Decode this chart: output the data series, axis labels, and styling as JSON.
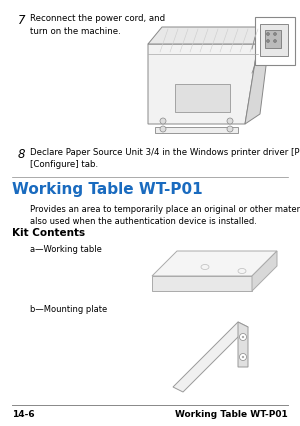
{
  "bg_color": "#ffffff",
  "footer_left": "14-6",
  "footer_right": "Working Table WT-P01",
  "footer_fontsize": 6.5,
  "step7_number": "7",
  "step7_text": "Reconnect the power cord, and\nturn on the machine.",
  "step8_number": "8",
  "step8_text": "Declare Paper Source Unit 3/4 in the Windows printer driver [Properties]/\n[Configure] tab.",
  "section_title": "Working Table WT-P01",
  "section_title_color": "#1a6bbf",
  "section_title_fontsize": 11.0,
  "body_text": "Provides an area to temporarily place an original or other materials. This is\nalso used when the authentication device is installed.",
  "kit_title": "Kit Contents",
  "kit_title_fontsize": 7.5,
  "label_a": "a—Working table",
  "label_b": "b—Mounting plate",
  "step_number_fontsize": 8.5,
  "step_fontsize": 6.2,
  "body_fontsize": 6.0,
  "label_fontsize": 6.0
}
